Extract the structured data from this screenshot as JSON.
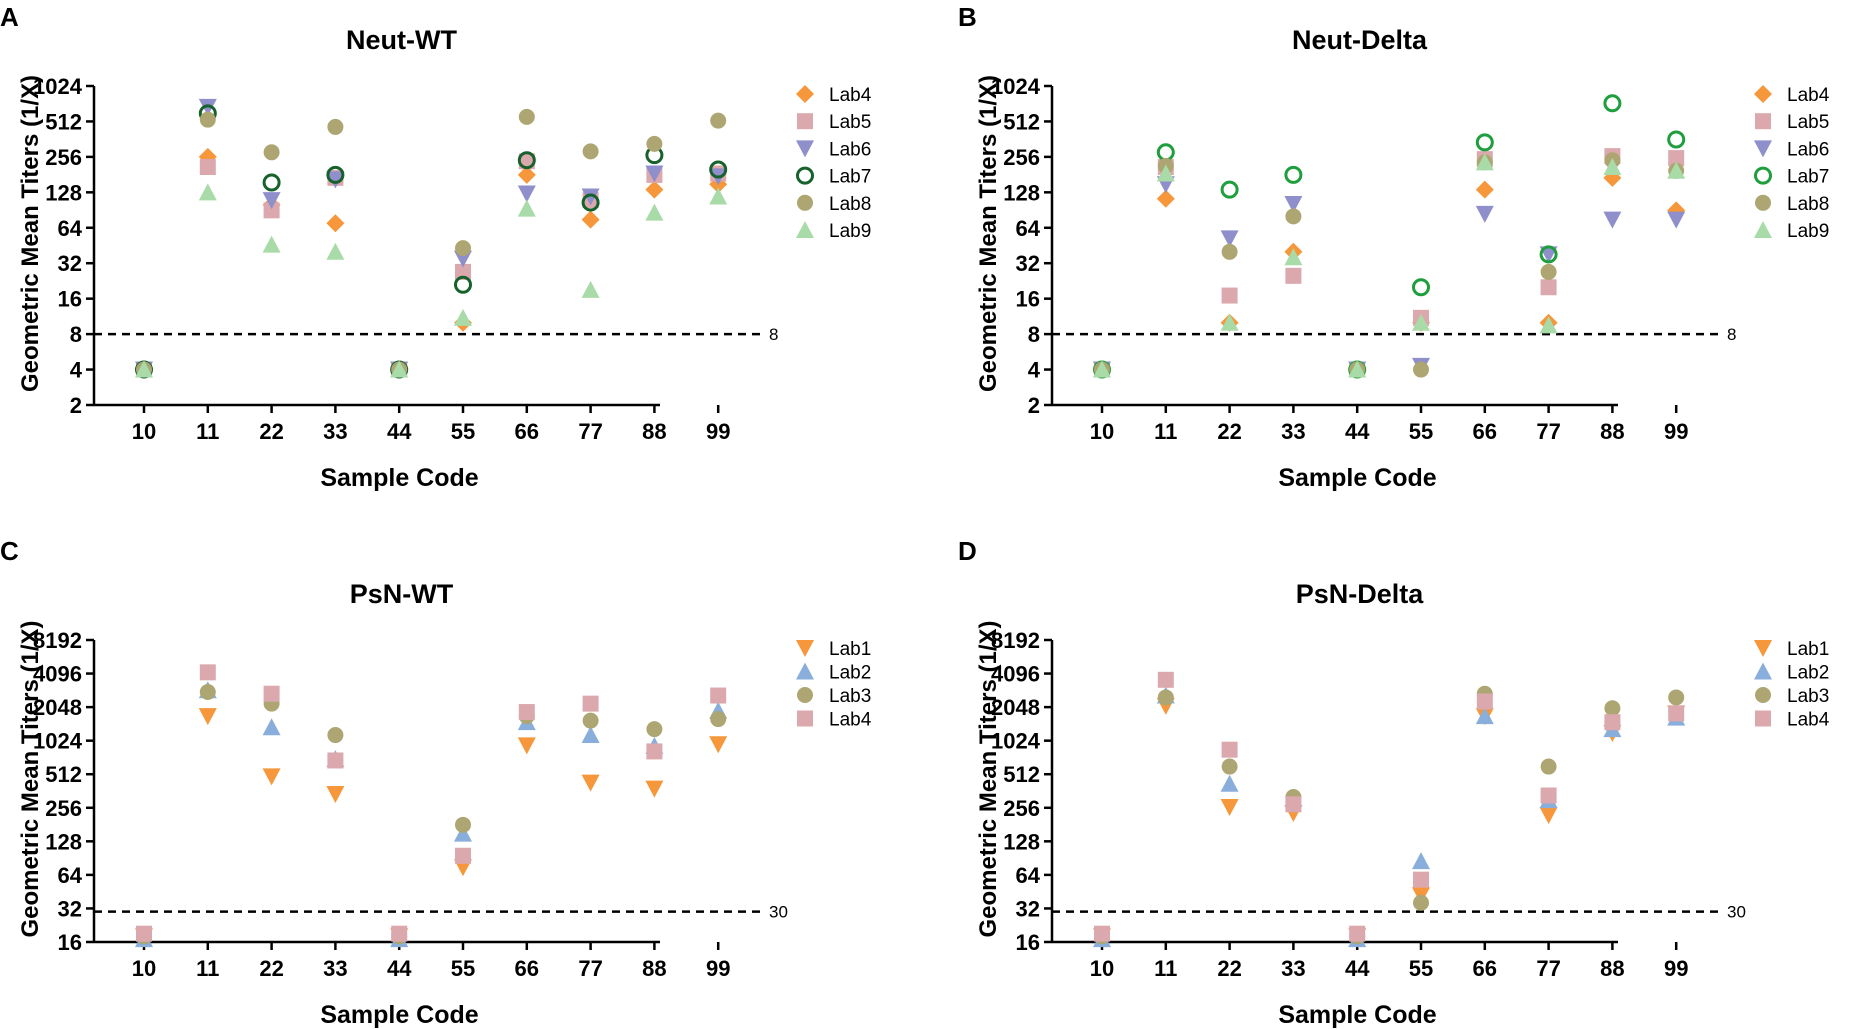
{
  "chart_data": [
    {
      "panel": "A",
      "type": "scatter",
      "title": "Neut-WT",
      "xlabel": "Sample Code",
      "ylabel": "Geometric Mean Titers  (1/X)",
      "yscale": "log2",
      "ylim": [
        2,
        1024
      ],
      "yticks": [
        "1024",
        "512",
        "256",
        "128",
        "64",
        "32",
        "16",
        "8",
        "4",
        "2"
      ],
      "categories": [
        "10",
        "11",
        "22",
        "33",
        "44",
        "55",
        "66",
        "77",
        "88",
        "99"
      ],
      "threshold": {
        "value": 8,
        "label": "8"
      },
      "series": [
        {
          "name": "Lab4",
          "marker": "diamond",
          "color": "#F5973A",
          "fill": true,
          "values": [
            4,
            256,
            100,
            70,
            4,
            10,
            180,
            75,
            135,
            150
          ]
        },
        {
          "name": "Lab5",
          "marker": "square",
          "color": "#DBA9AD",
          "fill": true,
          "values": [
            4,
            210,
            90,
            170,
            4,
            27,
            235,
            110,
            180,
            185
          ]
        },
        {
          "name": "Lab6",
          "marker": "triangle-down",
          "color": "#8E8FCB",
          "fill": true,
          "values": [
            4,
            680,
            110,
            165,
            4,
            35,
            125,
            118,
            185,
            175
          ]
        },
        {
          "name": "Lab7",
          "marker": "circle-open",
          "color": "#17612C",
          "fill": false,
          "values": [
            4,
            600,
            155,
            180,
            4,
            21,
            240,
            105,
            265,
            200
          ]
        },
        {
          "name": "Lab8",
          "marker": "circle",
          "color": "#ADA672",
          "fill": true,
          "values": [
            4,
            530,
            280,
            460,
            4,
            43,
            560,
            285,
            330,
            520
          ]
        },
        {
          "name": "Lab9",
          "marker": "triangle-up",
          "color": "#A9DBA9",
          "fill": true,
          "values": [
            4,
            128,
            46,
            40,
            4,
            11,
            93,
            19,
            86,
            118
          ]
        }
      ]
    },
    {
      "panel": "B",
      "type": "scatter",
      "title": "Neut-Delta",
      "xlabel": "Sample Code",
      "ylabel": "Geometric Mean Titers  (1/X)",
      "yscale": "log2",
      "ylim": [
        2,
        1024
      ],
      "yticks": [
        "1024",
        "512",
        "256",
        "128",
        "64",
        "32",
        "16",
        "8",
        "4",
        "2"
      ],
      "categories": [
        "10",
        "11",
        "22",
        "33",
        "44",
        "55",
        "66",
        "77",
        "88",
        "99"
      ],
      "threshold": {
        "value": 8,
        "label": "8"
      },
      "series": [
        {
          "name": "Lab4",
          "marker": "diamond",
          "color": "#F5973A",
          "fill": true,
          "values": [
            4,
            113,
            10,
            40,
            4,
            10,
            135,
            10,
            170,
            90
          ]
        },
        {
          "name": "Lab5",
          "marker": "square",
          "color": "#DBA9AD",
          "fill": true,
          "values": [
            4,
            210,
            17,
            25,
            4,
            11,
            245,
            20,
            260,
            250
          ]
        },
        {
          "name": "Lab6",
          "marker": "triangle-down",
          "color": "#8E8FCB",
          "fill": true,
          "values": [
            4,
            150,
            52,
            102,
            4,
            4.3,
            84,
            38,
            75,
            75
          ]
        },
        {
          "name": "Lab7",
          "marker": "circle-open",
          "color": "#1E9E3C",
          "fill": false,
          "values": [
            4,
            280,
            135,
            180,
            4,
            20,
            340,
            38,
            730,
            360
          ]
        },
        {
          "name": "Lab8",
          "marker": "circle",
          "color": "#ADA672",
          "fill": true,
          "values": [
            4,
            215,
            40,
            80,
            4,
            4,
            230,
            27,
            240,
            195
          ]
        },
        {
          "name": "Lab9",
          "marker": "triangle-up",
          "color": "#A9DBA9",
          "fill": true,
          "values": [
            4,
            185,
            10,
            36,
            4,
            10,
            230,
            9.5,
            210,
            195
          ]
        }
      ]
    },
    {
      "panel": "C",
      "type": "scatter",
      "title": "PsN-WT",
      "xlabel": "Sample Code",
      "ylabel": "Geometric Mean Titers  (1/X)",
      "yscale": "log2",
      "ylim": [
        16,
        8192
      ],
      "yticks": [
        "8192",
        "4096",
        "2048",
        "1024",
        "512",
        "256",
        "128",
        "64",
        "32",
        "16"
      ],
      "categories": [
        "10",
        "11",
        "22",
        "33",
        "44",
        "55",
        "66",
        "77",
        "88",
        "99"
      ],
      "threshold": {
        "value": 30,
        "label": "30"
      },
      "series": [
        {
          "name": "Lab1",
          "marker": "triangle-down",
          "color": "#F5973A",
          "fill": true,
          "values": [
            18,
            1700,
            490,
            340,
            18,
            75,
            930,
            430,
            380,
            950
          ]
        },
        {
          "name": "Lab2",
          "marker": "triangle-up",
          "color": "#8AAEDB",
          "fill": true,
          "values": [
            17,
            2900,
            1350,
            700,
            17,
            150,
            1500,
            1150,
            920,
            1900
          ]
        },
        {
          "name": "Lab3",
          "marker": "circle",
          "color": "#ADA672",
          "fill": true,
          "values": [
            18,
            2800,
            2200,
            1150,
            18,
            180,
            1700,
            1550,
            1300,
            1600
          ]
        },
        {
          "name": "Lab4",
          "marker": "square",
          "color": "#DBA9AD",
          "fill": true,
          "values": [
            19,
            4200,
            2700,
            680,
            19,
            95,
            1850,
            2200,
            820,
            2600
          ]
        }
      ]
    },
    {
      "panel": "D",
      "type": "scatter",
      "title": "PsN-Delta",
      "xlabel": "Sample Code",
      "ylabel": "Geometric Mean Titers  (1/X)",
      "yscale": "log2",
      "ylim": [
        16,
        8192
      ],
      "yticks": [
        "8192",
        "4096",
        "2048",
        "1024",
        "512",
        "256",
        "128",
        "64",
        "32",
        "16"
      ],
      "categories": [
        "10",
        "11",
        "22",
        "33",
        "44",
        "55",
        "66",
        "77",
        "88",
        "99"
      ],
      "threshold": {
        "value": 30,
        "label": "30"
      },
      "series": [
        {
          "name": "Lab1",
          "marker": "triangle-down",
          "color": "#F5973A",
          "fill": true,
          "values": [
            18,
            2100,
            260,
            230,
            18,
            42,
            1700,
            220,
            1200,
            1800
          ]
        },
        {
          "name": "Lab2",
          "marker": "triangle-up",
          "color": "#8AAEDB",
          "fill": true,
          "values": [
            17,
            2600,
            420,
            310,
            17,
            85,
            1700,
            300,
            1300,
            1650
          ]
        },
        {
          "name": "Lab3",
          "marker": "circle",
          "color": "#ADA672",
          "fill": true,
          "values": [
            18,
            2500,
            600,
            320,
            18,
            36,
            2700,
            600,
            2000,
            2500
          ]
        },
        {
          "name": "Lab4",
          "marker": "square",
          "color": "#DBA9AD",
          "fill": true,
          "values": [
            19,
            3600,
            850,
            275,
            19,
            58,
            2300,
            330,
            1500,
            1800
          ]
        }
      ]
    }
  ]
}
